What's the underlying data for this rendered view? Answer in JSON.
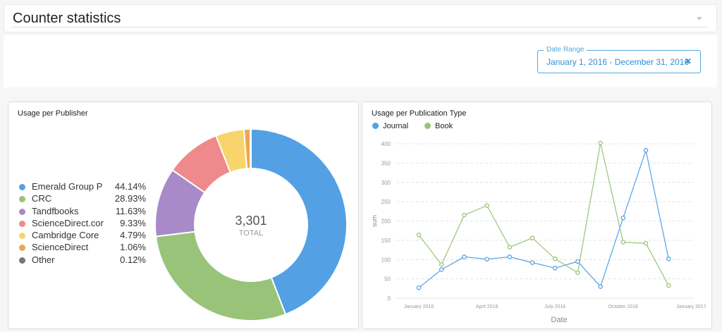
{
  "header": {
    "title": "Counter statistics"
  },
  "filters": {
    "date_range": {
      "label": "Date Range",
      "value": "January 1, 2016 - December 31, 2016",
      "clear_icon": "close-icon"
    }
  },
  "publisher_panel": {
    "title": "Usage per Publisher",
    "total": "3,301",
    "total_label": "TOTAL",
    "items": [
      {
        "label": "Emerald Group P",
        "pct": "44.14%",
        "color": "#53a0e4",
        "value": 44.14
      },
      {
        "label": "CRC",
        "pct": "28.93%",
        "color": "#98c378",
        "value": 28.93
      },
      {
        "label": "Tandfbooks",
        "pct": "11.63%",
        "color": "#a88ac9",
        "value": 11.63
      },
      {
        "label": "ScienceDirect.com",
        "pct": "9.33%",
        "color": "#ee8a8b",
        "value": 9.33
      },
      {
        "label": "Cambridge Core",
        "pct": "4.79%",
        "color": "#f7d56b",
        "value": 4.79
      },
      {
        "label": "ScienceDirect",
        "pct": "1.06%",
        "color": "#eaa84e",
        "value": 1.06
      },
      {
        "label": "Other",
        "pct": "0.12%",
        "color": "#777777",
        "value": 0.12
      }
    ]
  },
  "type_panel": {
    "title": "Usage per Publication Type",
    "legend": [
      {
        "label": "Journal",
        "color": "#53a0e4"
      },
      {
        "label": "Book",
        "color": "#98c378"
      }
    ]
  },
  "chart_data": [
    {
      "type": "pie",
      "categories": [
        "Emerald Group P",
        "CRC",
        "Tandfbooks",
        "ScienceDirect.com",
        "Cambridge Core",
        "ScienceDirect",
        "Other"
      ],
      "values": [
        44.14,
        28.93,
        11.63,
        9.33,
        4.79,
        1.06,
        0.12
      ],
      "title": "Usage per Publisher"
    },
    {
      "type": "line",
      "title": "Usage per Publication Type",
      "xlabel": "Date",
      "ylabel": "sum",
      "ylim": [
        0,
        400
      ],
      "yticks": [
        "0",
        "50",
        "100",
        "150",
        "200",
        "250",
        "300",
        "350",
        "400"
      ],
      "xticks": [
        "January 2016",
        "April 2016",
        "July 2016",
        "October 2016",
        "January 2017"
      ],
      "x": [
        "2016-01",
        "2016-02",
        "2016-03",
        "2016-04",
        "2016-05",
        "2016-06",
        "2016-07",
        "2016-08",
        "2016-09",
        "2016-10",
        "2016-11",
        "2016-12"
      ],
      "series": [
        {
          "name": "Journal",
          "color": "#53a0e4",
          "values": [
            27,
            74,
            107,
            101,
            107,
            92,
            78,
            95,
            30,
            208,
            383,
            102
          ]
        },
        {
          "name": "Book",
          "color": "#98c378",
          "values": [
            164,
            87,
            215,
            240,
            132,
            156,
            102,
            66,
            402,
            145,
            142,
            33
          ]
        }
      ]
    }
  ]
}
